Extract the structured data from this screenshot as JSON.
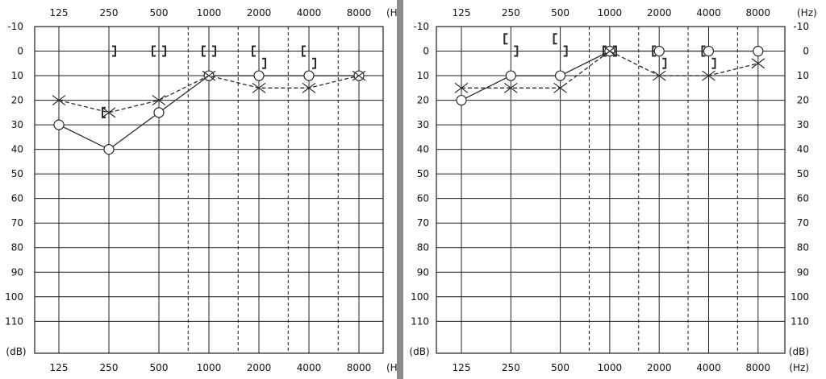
{
  "chart_data": [
    {
      "type": "line",
      "panel": "left",
      "x_scale": "log2",
      "x_tick_labels": [
        "125",
        "250",
        "500",
        "1000",
        "2000",
        "4000",
        "8000"
      ],
      "x_unit": "(H",
      "y_unit": "(dB)",
      "y_tick_labels": [
        "-10",
        "0",
        "10",
        "20",
        "30",
        "40",
        "50",
        "60",
        "70",
        "80",
        "90",
        "100",
        "110"
      ],
      "ylim": [
        110,
        -10
      ],
      "grid": true,
      "series": [
        {
          "marker": "circle",
          "line": "solid",
          "x": [
            125,
            250,
            500,
            1000,
            2000,
            4000,
            8000
          ],
          "y": [
            30,
            40,
            25,
            10,
            10,
            10,
            10
          ]
        },
        {
          "marker": "x",
          "line": "dashed",
          "x": [
            125,
            250,
            500,
            1000,
            2000,
            4000,
            8000
          ],
          "y": [
            20,
            25,
            20,
            10,
            15,
            15,
            10
          ]
        },
        {
          "marker": "bracket-left",
          "line": "none",
          "x": [
            250,
            500,
            1000,
            2000,
            4000
          ],
          "y": [
            25,
            0,
            0,
            0,
            0
          ]
        },
        {
          "marker": "bracket-right",
          "line": "none",
          "x": [
            250,
            500,
            1000,
            2000,
            4000
          ],
          "y": [
            0,
            0,
            0,
            5,
            5
          ]
        }
      ]
    },
    {
      "type": "line",
      "panel": "right",
      "x_scale": "log2",
      "x_tick_labels": [
        "125",
        "250",
        "500",
        "1000",
        "2000",
        "4000",
        "8000"
      ],
      "x_unit": "(Hz)",
      "y_unit": "(dB)",
      "y_tick_labels": [
        "-10",
        "0",
        "10",
        "20",
        "30",
        "40",
        "50",
        "60",
        "70",
        "80",
        "90",
        "100",
        "110"
      ],
      "ylim": [
        110,
        -10
      ],
      "grid": true,
      "series": [
        {
          "marker": "circle",
          "line": "solid",
          "x": [
            125,
            250,
            500,
            1000,
            2000,
            4000,
            8000
          ],
          "y": [
            20,
            10,
            10,
            0,
            0,
            0,
            0
          ]
        },
        {
          "marker": "x",
          "line": "dashed",
          "x": [
            125,
            250,
            500,
            1000,
            2000,
            4000,
            8000
          ],
          "y": [
            15,
            15,
            15,
            0,
            10,
            10,
            5
          ]
        },
        {
          "marker": "bracket-left",
          "line": "none",
          "x": [
            250,
            500,
            1000,
            2000,
            4000
          ],
          "y": [
            -5,
            -5,
            0,
            0,
            0
          ]
        },
        {
          "marker": "bracket-right",
          "line": "none",
          "x": [
            250,
            500,
            1000,
            2000,
            4000
          ],
          "y": [
            0,
            0,
            0,
            5,
            5
          ]
        }
      ]
    }
  ]
}
